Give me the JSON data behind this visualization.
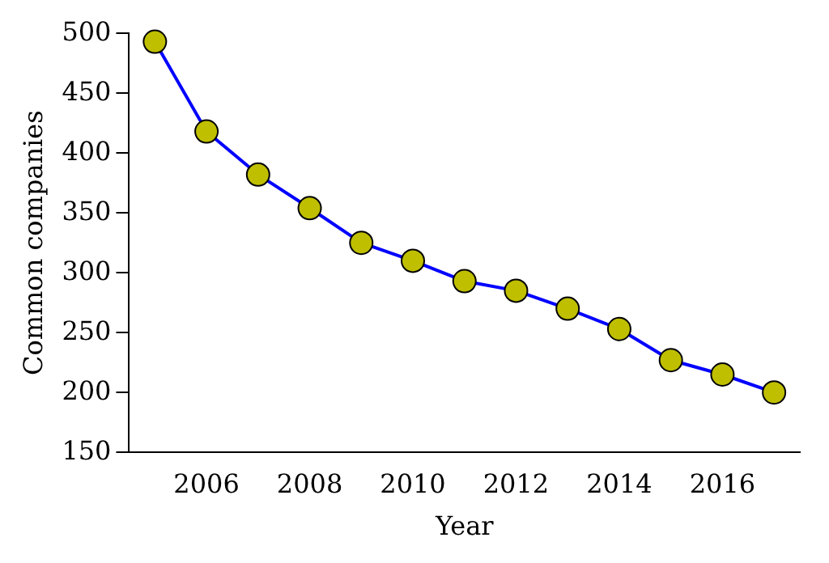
{
  "chart_data": {
    "type": "line",
    "xlabel": "Year",
    "ylabel": "Common companies",
    "x": [
      2005,
      2006,
      2007,
      2008,
      2009,
      2010,
      2011,
      2012,
      2013,
      2014,
      2015,
      2016,
      2017
    ],
    "series": [
      {
        "color": "#0000ff",
        "values": [
          493,
          418,
          382,
          354,
          325,
          310,
          293,
          285,
          270,
          253,
          227,
          215,
          200
        ]
      }
    ],
    "xlim": [
      2004.5,
      2017.5
    ],
    "ylim": [
      150,
      500
    ],
    "xticks": [
      2006,
      2008,
      2010,
      2012,
      2014,
      2016
    ],
    "yticks": [
      150,
      200,
      250,
      300,
      350,
      400,
      450,
      500
    ],
    "marker": "circle",
    "line_style": "solid",
    "grid": false,
    "legend": false
  }
}
